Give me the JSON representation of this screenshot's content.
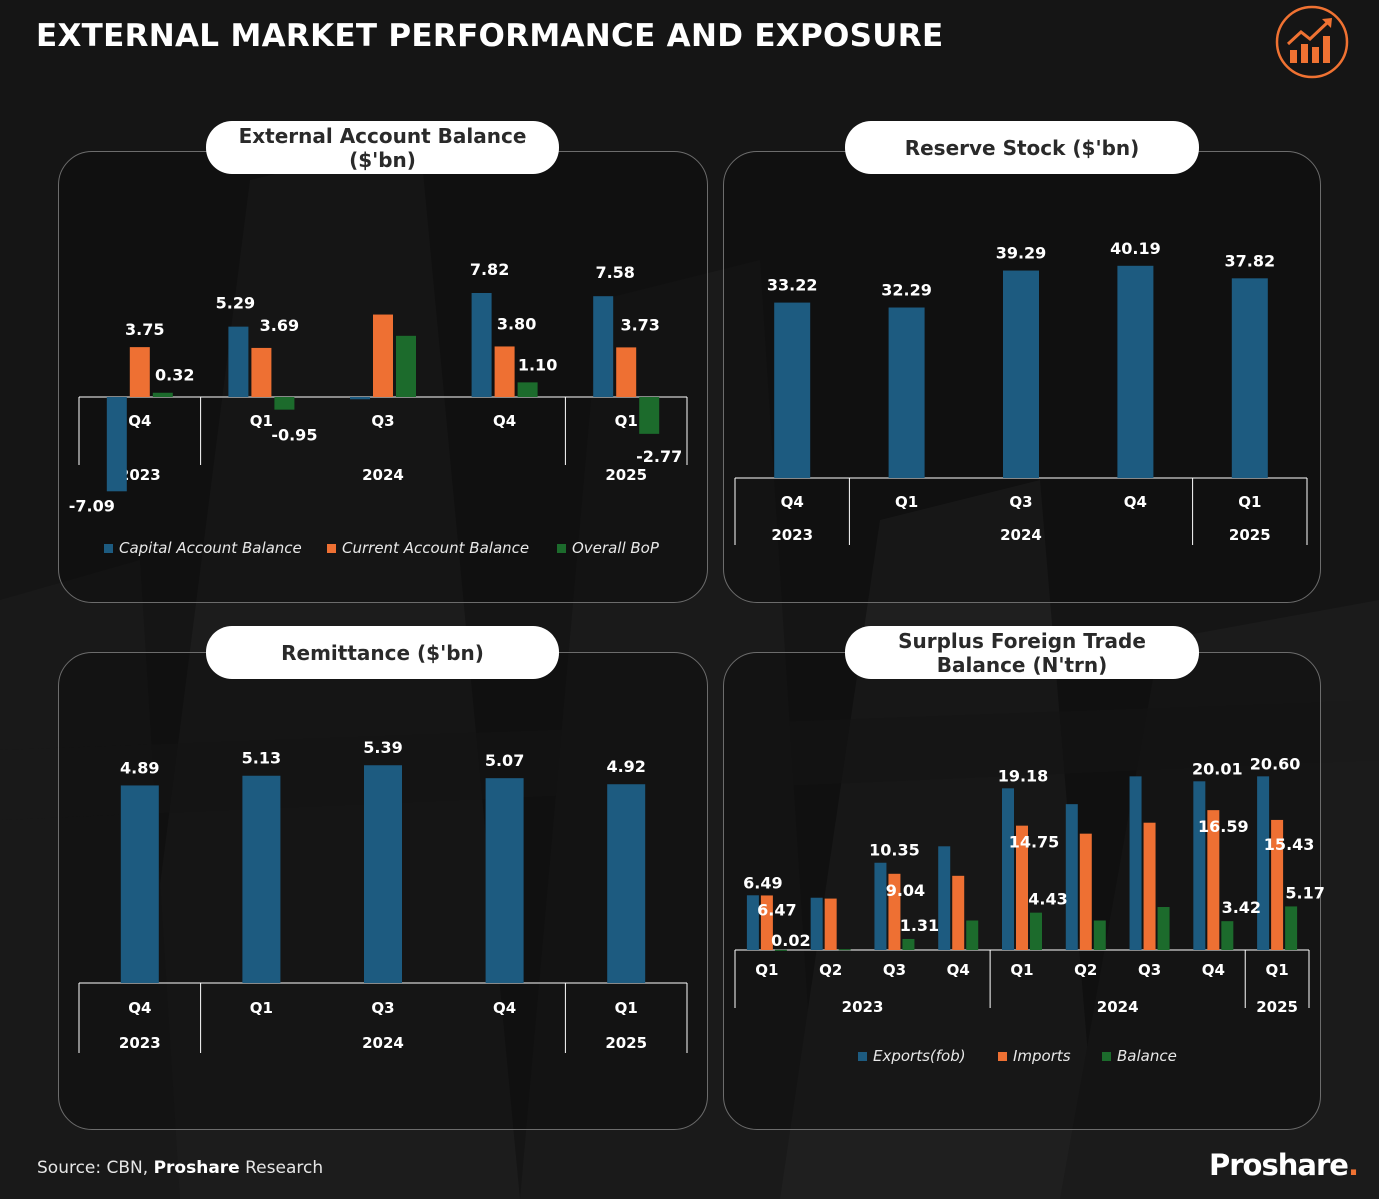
{
  "page": {
    "title": "EXTERNAL MARKET PERFORMANCE AND EXPOSURE",
    "source_prefix": "Source: CBN, ",
    "source_bold": "Proshare",
    "source_suffix": " Research",
    "brand": "Proshare",
    "brand_dot": "."
  },
  "colors": {
    "blue": "#1d5b80",
    "orange": "#ee7033",
    "green": "#1c6b2c",
    "accent": "#f07232"
  },
  "chart_data": [
    {
      "id": "external",
      "type": "bar",
      "title": "External Account Balance ($'bn)",
      "categories": [
        "Q4",
        "Q1",
        "Q3",
        "Q4",
        "Q1"
      ],
      "years": [
        {
          "label": "2023",
          "span": 1
        },
        {
          "label": "2024",
          "span": 3
        },
        {
          "label": "2025",
          "span": 1
        }
      ],
      "series": [
        {
          "name": "Capital Account Balance",
          "color": "blue",
          "values": [
            -7.09,
            5.29,
            -0.17,
            7.82,
            7.58
          ],
          "labels": [
            "-7.09",
            "5.29",
            "",
            "7.82",
            "7.58"
          ]
        },
        {
          "name": "Current Account Balance",
          "color": "orange",
          "values": [
            3.75,
            3.69,
            6.2,
            3.8,
            3.73
          ],
          "labels": [
            "3.75",
            "3.69",
            "",
            "3.80",
            "3.73"
          ]
        },
        {
          "name": "Overall BoP",
          "color": "green",
          "values": [
            0.32,
            -0.95,
            4.6,
            1.1,
            -2.77
          ],
          "labels": [
            "0.32",
            "-0.95",
            "",
            "1.10",
            "-2.77"
          ]
        }
      ],
      "ylim": [
        -7.5,
        8.5
      ],
      "legend": "bottom"
    },
    {
      "id": "reserve",
      "type": "bar",
      "title": "Reserve Stock ($'bn)",
      "categories": [
        "Q4",
        "Q1",
        "Q3",
        "Q4",
        "Q1"
      ],
      "years": [
        {
          "label": "2023",
          "span": 1
        },
        {
          "label": "2024",
          "span": 3
        },
        {
          "label": "2025",
          "span": 1
        }
      ],
      "series": [
        {
          "name": "Reserve Stock",
          "color": "blue",
          "values": [
            33.22,
            32.29,
            39.29,
            40.19,
            37.82
          ],
          "labels": [
            "33.22",
            "32.29",
            "39.29",
            "40.19",
            "37.82"
          ]
        }
      ],
      "ylim": [
        0,
        40.19
      ]
    },
    {
      "id": "remittance",
      "type": "bar",
      "title": "Remittance ($'bn)",
      "categories": [
        "Q4",
        "Q1",
        "Q3",
        "Q4",
        "Q1"
      ],
      "years": [
        {
          "label": "2023",
          "span": 1
        },
        {
          "label": "2024",
          "span": 3
        },
        {
          "label": "2025",
          "span": 1
        }
      ],
      "series": [
        {
          "name": "Remittance",
          "color": "blue",
          "values": [
            4.89,
            5.13,
            5.39,
            5.07,
            4.92
          ],
          "labels": [
            "4.89",
            "5.13",
            "5.39",
            "5.07",
            "4.92"
          ]
        }
      ],
      "ylim": [
        0,
        5.39
      ]
    },
    {
      "id": "trade",
      "type": "bar",
      "title": "Surplus Foreign Trade Balance (N'trn)",
      "categories": [
        "Q1",
        "Q2",
        "Q3",
        "Q4",
        "Q1",
        "Q2",
        "Q3",
        "Q4",
        "Q1"
      ],
      "years": [
        {
          "label": "2023",
          "span": 4
        },
        {
          "label": "2024",
          "span": 4
        },
        {
          "label": "2025",
          "span": 1
        }
      ],
      "series": [
        {
          "name": "Exports(fob)",
          "color": "blue",
          "values": [
            6.49,
            6.2,
            10.35,
            12.3,
            19.18,
            17.3,
            20.6,
            20.01,
            20.6
          ],
          "labels": [
            "6.49",
            "",
            "10.35",
            "",
            "19.18",
            "",
            "",
            "20.01",
            "20.60"
          ]
        },
        {
          "name": "Imports",
          "color": "orange",
          "values": [
            6.47,
            6.1,
            9.04,
            8.8,
            14.75,
            13.8,
            15.1,
            16.59,
            15.43
          ],
          "labels": [
            "6.47",
            "",
            "9.04",
            "",
            "14.75",
            "",
            "",
            "16.59",
            "15.43"
          ]
        },
        {
          "name": "Balance",
          "color": "green",
          "values": [
            0.02,
            0.1,
            1.31,
            3.5,
            4.43,
            3.5,
            5.1,
            3.42,
            5.17
          ],
          "labels": [
            "0.02",
            "",
            "1.31",
            "",
            "4.43",
            "",
            "",
            "3.42",
            "5.17"
          ]
        }
      ],
      "ylim": [
        0,
        20.6
      ],
      "legend": "bottom"
    }
  ]
}
